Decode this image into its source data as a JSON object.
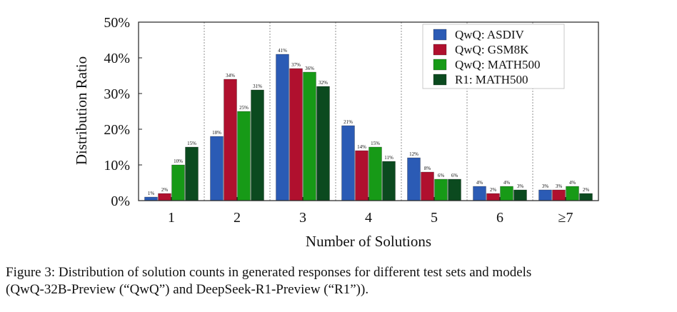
{
  "chart_data": {
    "type": "bar",
    "xlabel": "Number of Solutions",
    "ylabel": "Distribution Ratio",
    "ylim": [
      0,
      50
    ],
    "yticks": [
      "0%",
      "10%",
      "20%",
      "30%",
      "40%",
      "50%"
    ],
    "categories": [
      "1",
      "2",
      "3",
      "4",
      "5",
      "6",
      "≥7"
    ],
    "legend_position": "top-right",
    "grid": "vertical dashed separators between categories",
    "series": [
      {
        "name": "QwQ: ASDIV",
        "color": "#2b5bb5",
        "values": [
          1,
          18,
          41,
          21,
          12,
          4,
          3
        ],
        "labels": [
          "1%",
          "18%",
          "41%",
          "21%",
          "12%",
          "4%",
          "3%"
        ]
      },
      {
        "name": "QwQ: GSM8K",
        "color": "#b0102e",
        "values": [
          2,
          34,
          37,
          14,
          8,
          2,
          3
        ],
        "labels": [
          "2%",
          "34%",
          "37%",
          "14%",
          "8%",
          "2%",
          "3%"
        ]
      },
      {
        "name": "QwQ: MATH500",
        "color": "#179a17",
        "values": [
          10,
          25,
          36,
          15,
          6,
          4,
          4
        ],
        "labels": [
          "10%",
          "25%",
          "36%",
          "15%",
          "6%",
          "4%",
          "4%"
        ]
      },
      {
        "name": "R1: MATH500",
        "color": "#0b4a1f",
        "values": [
          15,
          31,
          32,
          11,
          6,
          3,
          2
        ],
        "labels": [
          "15%",
          "31%",
          "32%",
          "11%",
          "6%",
          "3%",
          "2%"
        ]
      }
    ]
  },
  "caption": {
    "line1": "Figure 3: Distribution of solution counts in generated responses for different test sets and models",
    "line2": "(QwQ-32B-Preview (“QwQ”) and DeepSeek-R1-Preview (“R1”))."
  }
}
